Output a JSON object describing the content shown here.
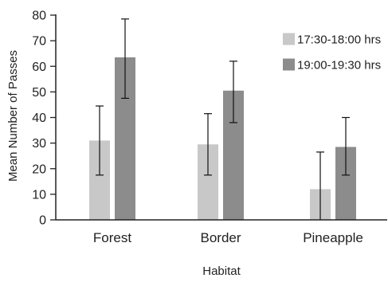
{
  "chart_data": {
    "type": "bar",
    "title": "",
    "xlabel": "Habitat",
    "ylabel": "Mean Number of Passes",
    "ylim": [
      0,
      80
    ],
    "yticks": [
      0,
      10,
      20,
      30,
      40,
      50,
      60,
      70,
      80
    ],
    "categories": [
      "Forest",
      "Border",
      "Pineapple"
    ],
    "series": [
      {
        "name": "17:30-18:00 hrs",
        "color": "#c8c8c8",
        "values": [
          31,
          29.5,
          12
        ],
        "error_low": [
          17.5,
          17.5,
          0
        ],
        "error_high": [
          44.5,
          41.5,
          26.5
        ]
      },
      {
        "name": "19:00-19:30 hrs",
        "color": "#8c8c8c",
        "values": [
          63.5,
          50.5,
          28.5
        ],
        "error_low": [
          47.5,
          38,
          17.5
        ],
        "error_high": [
          78.5,
          62,
          40
        ]
      }
    ],
    "legend_position": "top-right",
    "grid": false
  }
}
